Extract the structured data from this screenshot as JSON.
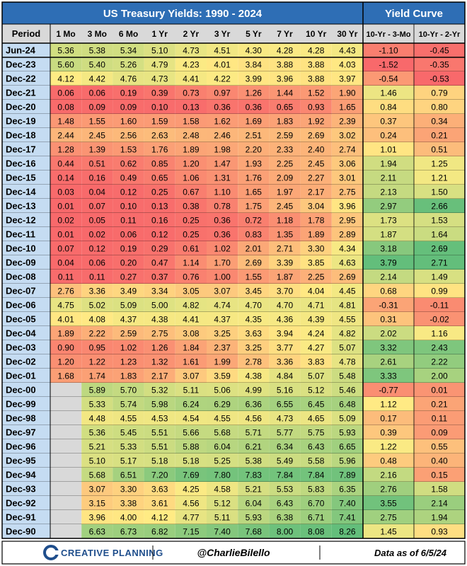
{
  "chart_data": {
    "type": "heatmap",
    "title": "US Treasury Yields: 1990 - 2024",
    "curve_title": "Yield Curve",
    "row_header": "Period",
    "columns": [
      "1 Mo",
      "3 Mo",
      "6 Mo",
      "1 Yr",
      "2 Yr",
      "3 Yr",
      "5 Yr",
      "7 Yr",
      "10 Yr",
      "30 Yr"
    ],
    "curve_columns": [
      "10-Yr - 3-Mo",
      "10-Yr - 2-Yr"
    ],
    "rows": [
      {
        "period": "Jun-24",
        "yields": [
          5.36,
          5.38,
          5.34,
          5.1,
          4.73,
          4.51,
          4.3,
          4.28,
          4.28,
          4.43
        ],
        "curve": [
          -1.1,
          -0.45
        ]
      },
      {
        "period": "Dec-23",
        "yields": [
          5.6,
          5.4,
          5.26,
          4.79,
          4.23,
          4.01,
          3.84,
          3.88,
          3.88,
          4.03
        ],
        "curve": [
          -1.52,
          -0.35
        ]
      },
      {
        "period": "Dec-22",
        "yields": [
          4.12,
          4.42,
          4.76,
          4.73,
          4.41,
          4.22,
          3.99,
          3.96,
          3.88,
          3.97
        ],
        "curve": [
          -0.54,
          -0.53
        ]
      },
      {
        "period": "Dec-21",
        "yields": [
          0.06,
          0.06,
          0.19,
          0.39,
          0.73,
          0.97,
          1.26,
          1.44,
          1.52,
          1.9
        ],
        "curve": [
          1.46,
          0.79
        ]
      },
      {
        "period": "Dec-20",
        "yields": [
          0.08,
          0.09,
          0.09,
          0.1,
          0.13,
          0.36,
          0.36,
          0.65,
          0.93,
          1.65
        ],
        "curve": [
          0.84,
          0.8
        ]
      },
      {
        "period": "Dec-19",
        "yields": [
          1.48,
          1.55,
          1.6,
          1.59,
          1.58,
          1.62,
          1.69,
          1.83,
          1.92,
          2.39
        ],
        "curve": [
          0.37,
          0.34
        ]
      },
      {
        "period": "Dec-18",
        "yields": [
          2.44,
          2.45,
          2.56,
          2.63,
          2.48,
          2.46,
          2.51,
          2.59,
          2.69,
          3.02
        ],
        "curve": [
          0.24,
          0.21
        ]
      },
      {
        "period": "Dec-17",
        "yields": [
          1.28,
          1.39,
          1.53,
          1.76,
          1.89,
          1.98,
          2.2,
          2.33,
          2.4,
          2.74
        ],
        "curve": [
          1.01,
          0.51
        ]
      },
      {
        "period": "Dec-16",
        "yields": [
          0.44,
          0.51,
          0.62,
          0.85,
          1.2,
          1.47,
          1.93,
          2.25,
          2.45,
          3.06
        ],
        "curve": [
          1.94,
          1.25
        ]
      },
      {
        "period": "Dec-15",
        "yields": [
          0.14,
          0.16,
          0.49,
          0.65,
          1.06,
          1.31,
          1.76,
          2.09,
          2.27,
          3.01
        ],
        "curve": [
          2.11,
          1.21
        ]
      },
      {
        "period": "Dec-14",
        "yields": [
          0.03,
          0.04,
          0.12,
          0.25,
          0.67,
          1.1,
          1.65,
          1.97,
          2.17,
          2.75
        ],
        "curve": [
          2.13,
          1.5
        ]
      },
      {
        "period": "Dec-13",
        "yields": [
          0.01,
          0.07,
          0.1,
          0.13,
          0.38,
          0.78,
          1.75,
          2.45,
          3.04,
          3.96
        ],
        "curve": [
          2.97,
          2.66
        ]
      },
      {
        "period": "Dec-12",
        "yields": [
          0.02,
          0.05,
          0.11,
          0.16,
          0.25,
          0.36,
          0.72,
          1.18,
          1.78,
          2.95
        ],
        "curve": [
          1.73,
          1.53
        ]
      },
      {
        "period": "Dec-11",
        "yields": [
          0.01,
          0.02,
          0.06,
          0.12,
          0.25,
          0.36,
          0.83,
          1.35,
          1.89,
          2.89
        ],
        "curve": [
          1.87,
          1.64
        ]
      },
      {
        "period": "Dec-10",
        "yields": [
          0.07,
          0.12,
          0.19,
          0.29,
          0.61,
          1.02,
          2.01,
          2.71,
          3.3,
          4.34
        ],
        "curve": [
          3.18,
          2.69
        ]
      },
      {
        "period": "Dec-09",
        "yields": [
          0.04,
          0.06,
          0.2,
          0.47,
          1.14,
          1.7,
          2.69,
          3.39,
          3.85,
          4.63
        ],
        "curve": [
          3.79,
          2.71
        ]
      },
      {
        "period": "Dec-08",
        "yields": [
          0.11,
          0.11,
          0.27,
          0.37,
          0.76,
          1.0,
          1.55,
          1.87,
          2.25,
          2.69
        ],
        "curve": [
          2.14,
          1.49
        ]
      },
      {
        "period": "Dec-07",
        "yields": [
          2.76,
          3.36,
          3.49,
          3.34,
          3.05,
          3.07,
          3.45,
          3.7,
          4.04,
          4.45
        ],
        "curve": [
          0.68,
          0.99
        ]
      },
      {
        "period": "Dec-06",
        "yields": [
          4.75,
          5.02,
          5.09,
          5.0,
          4.82,
          4.74,
          4.7,
          4.7,
          4.71,
          4.81
        ],
        "curve": [
          -0.31,
          -0.11
        ]
      },
      {
        "period": "Dec-05",
        "yields": [
          4.01,
          4.08,
          4.37,
          4.38,
          4.41,
          4.37,
          4.35,
          4.36,
          4.39,
          4.55
        ],
        "curve": [
          0.31,
          -0.02
        ]
      },
      {
        "period": "Dec-04",
        "yields": [
          1.89,
          2.22,
          2.59,
          2.75,
          3.08,
          3.25,
          3.63,
          3.94,
          4.24,
          4.82
        ],
        "curve": [
          2.02,
          1.16
        ]
      },
      {
        "period": "Dec-03",
        "yields": [
          0.9,
          0.95,
          1.02,
          1.26,
          1.84,
          2.37,
          3.25,
          3.77,
          4.27,
          5.07
        ],
        "curve": [
          3.32,
          2.43
        ]
      },
      {
        "period": "Dec-02",
        "yields": [
          1.2,
          1.22,
          1.23,
          1.32,
          1.61,
          1.99,
          2.78,
          3.36,
          3.83,
          4.78
        ],
        "curve": [
          2.61,
          2.22
        ]
      },
      {
        "period": "Dec-01",
        "yields": [
          1.68,
          1.74,
          1.83,
          2.17,
          3.07,
          3.59,
          4.38,
          4.84,
          5.07,
          5.48
        ],
        "curve": [
          3.33,
          2.0
        ]
      },
      {
        "period": "Dec-00",
        "yields": [
          null,
          5.89,
          5.7,
          5.32,
          5.11,
          5.06,
          4.99,
          5.16,
          5.12,
          5.46
        ],
        "curve": [
          -0.77,
          0.01
        ]
      },
      {
        "period": "Dec-99",
        "yields": [
          null,
          5.33,
          5.74,
          5.98,
          6.24,
          6.29,
          6.36,
          6.55,
          6.45,
          6.48
        ],
        "curve": [
          1.12,
          0.21
        ]
      },
      {
        "period": "Dec-98",
        "yields": [
          null,
          4.48,
          4.55,
          4.53,
          4.54,
          4.55,
          4.56,
          4.73,
          4.65,
          5.09
        ],
        "curve": [
          0.17,
          0.11
        ]
      },
      {
        "period": "Dec-97",
        "yields": [
          null,
          5.36,
          5.45,
          5.51,
          5.66,
          5.68,
          5.71,
          5.77,
          5.75,
          5.93
        ],
        "curve": [
          0.39,
          0.09
        ]
      },
      {
        "period": "Dec-96",
        "yields": [
          null,
          5.21,
          5.33,
          5.51,
          5.88,
          6.04,
          6.21,
          6.34,
          6.43,
          6.65
        ],
        "curve": [
          1.22,
          0.55
        ]
      },
      {
        "period": "Dec-95",
        "yields": [
          null,
          5.1,
          5.17,
          5.18,
          5.18,
          5.25,
          5.38,
          5.49,
          5.58,
          5.96
        ],
        "curve": [
          0.48,
          0.4
        ]
      },
      {
        "period": "Dec-94",
        "yields": [
          null,
          5.68,
          6.51,
          7.2,
          7.69,
          7.8,
          7.83,
          7.84,
          7.84,
          7.89
        ],
        "curve": [
          2.16,
          0.15
        ]
      },
      {
        "period": "Dec-93",
        "yields": [
          null,
          3.07,
          3.3,
          3.63,
          4.25,
          4.58,
          5.21,
          5.53,
          5.83,
          6.35
        ],
        "curve": [
          2.76,
          1.58
        ]
      },
      {
        "period": "Dec-92",
        "yields": [
          null,
          3.15,
          3.38,
          3.61,
          4.56,
          5.12,
          6.04,
          6.43,
          6.7,
          7.4
        ],
        "curve": [
          3.55,
          2.14
        ]
      },
      {
        "period": "Dec-91",
        "yields": [
          null,
          3.96,
          4.0,
          4.12,
          4.77,
          5.11,
          5.93,
          6.38,
          6.71,
          7.41
        ],
        "curve": [
          2.75,
          1.94
        ]
      },
      {
        "period": "Dec-90",
        "yields": [
          null,
          6.63,
          6.73,
          6.82,
          7.15,
          7.4,
          7.68,
          8.0,
          8.08,
          8.26
        ],
        "curve": [
          1.45,
          0.93
        ]
      }
    ],
    "color_scale": {
      "low": "#f8696b",
      "mid": "#ffeb84",
      "high": "#63be7b"
    }
  },
  "footer": {
    "brand": "CREATIVE PLANNING",
    "handle": "@CharlieBilello",
    "as_of": "Data as of 6/5/24"
  },
  "colors": {
    "header_bg": "#2e6eb5",
    "header_text": "#ffffff",
    "subheader_bg": "#d9d9d9",
    "period_bg": "#c5dcf2",
    "empty_cell": "#d9d9d9",
    "brand_blue": "#1f4e8c",
    "border": "#000000"
  }
}
